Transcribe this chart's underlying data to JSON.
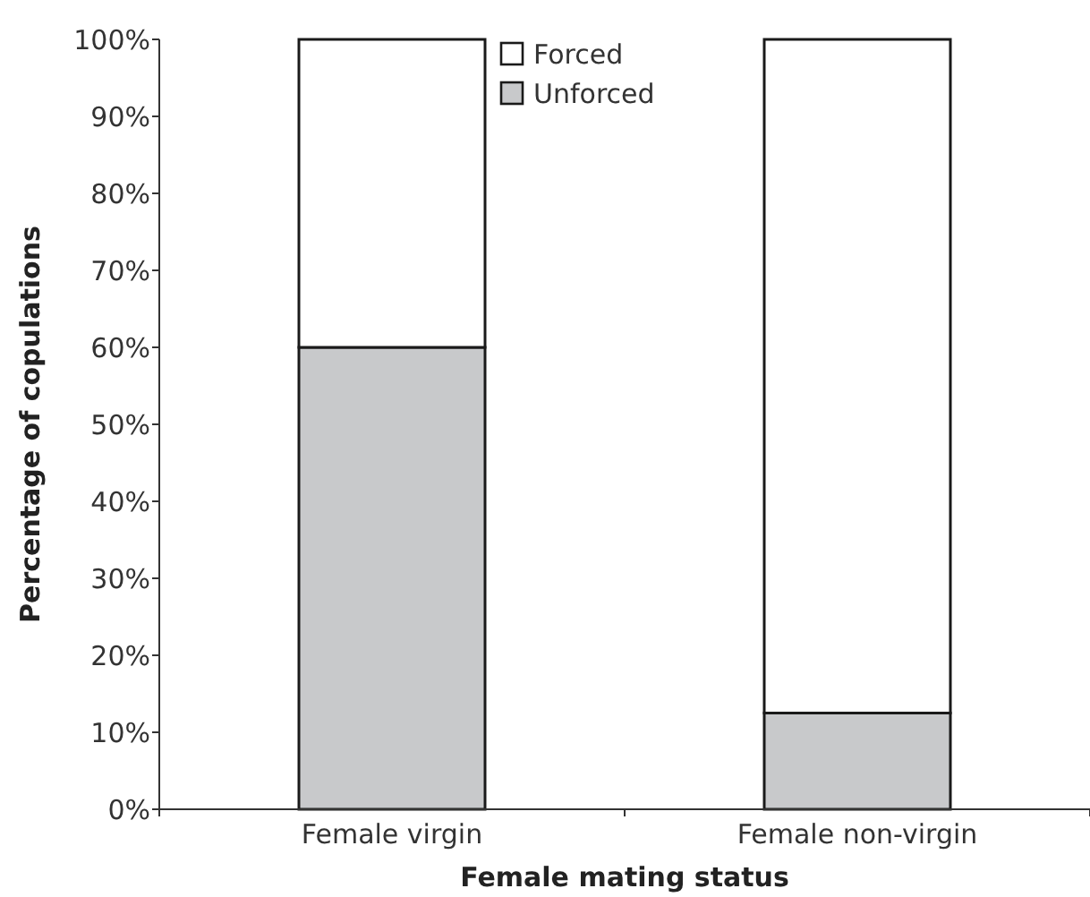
{
  "chart_data": {
    "type": "bar",
    "stacked": true,
    "xlabel": "Female mating status",
    "ylabel": "Percentage of copulations",
    "categories": [
      "Female virgin",
      "Female non-virgin"
    ],
    "series": [
      {
        "name": "Unforced",
        "color": "#c8c9cb",
        "values": [
          60,
          12.5
        ]
      },
      {
        "name": "Forced",
        "color": "#ffffff",
        "values": [
          40,
          87.5
        ]
      }
    ],
    "ylim": [
      0,
      100
    ],
    "yticks": [
      {
        "value": 0,
        "label": "0%"
      },
      {
        "value": 10,
        "label": "10%"
      },
      {
        "value": 20,
        "label": "20%"
      },
      {
        "value": 30,
        "label": "30%"
      },
      {
        "value": 40,
        "label": "40%"
      },
      {
        "value": 50,
        "label": "50%"
      },
      {
        "value": 60,
        "label": "60%"
      },
      {
        "value": 70,
        "label": "70%"
      },
      {
        "value": 80,
        "label": "80%"
      },
      {
        "value": 90,
        "label": "90%"
      },
      {
        "value": 100,
        "label": "100%"
      }
    ],
    "grid": false,
    "legend": "top"
  }
}
